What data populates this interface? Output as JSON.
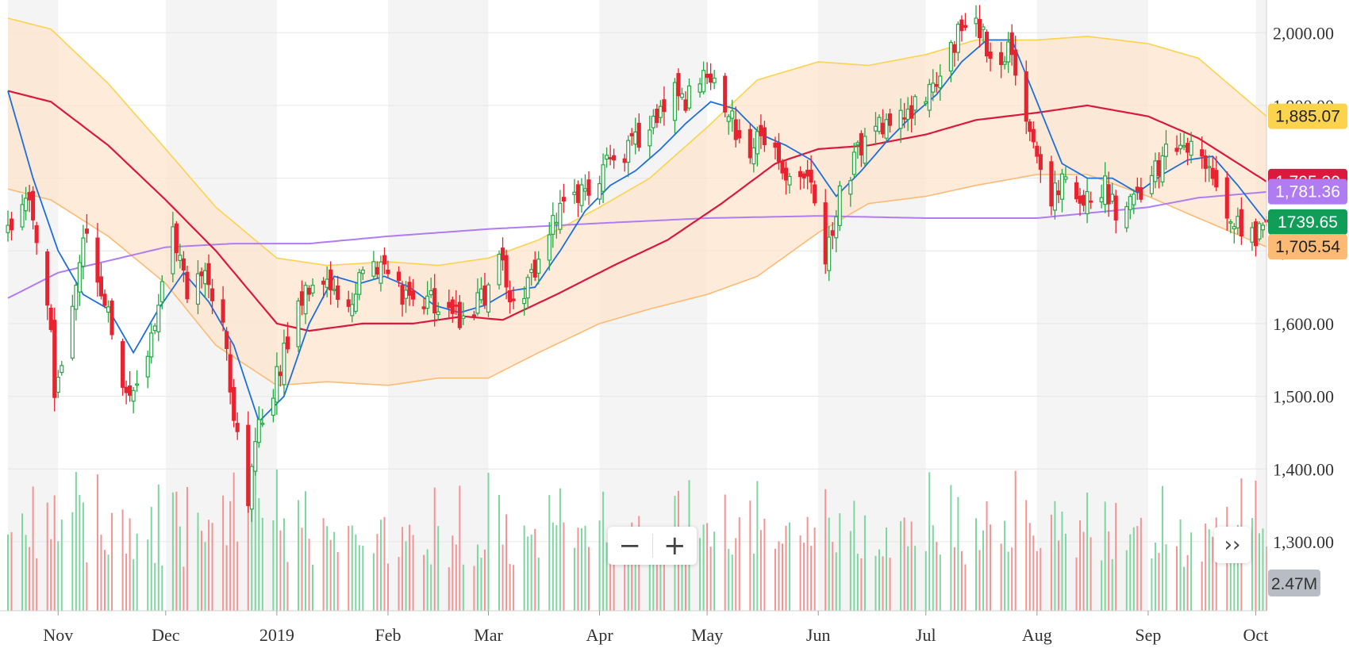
{
  "chart_data": {
    "type": "candlestick",
    "x_range": [
      "2018-10-18",
      "2019-10-04"
    ],
    "months": [
      {
        "label": "Nov",
        "date": "2018-11-01"
      },
      {
        "label": "Dec",
        "date": "2018-12-01"
      },
      {
        "label": "2019",
        "date": "2019-01-01"
      },
      {
        "label": "Feb",
        "date": "2019-02-01"
      },
      {
        "label": "Mar",
        "date": "2019-03-01"
      },
      {
        "label": "Apr",
        "date": "2019-04-01"
      },
      {
        "label": "May",
        "date": "2019-05-01"
      },
      {
        "label": "Jun",
        "date": "2019-06-01"
      },
      {
        "label": "Jul",
        "date": "2019-07-01"
      },
      {
        "label": "Aug",
        "date": "2019-08-01"
      },
      {
        "label": "Sep",
        "date": "2019-09-01"
      },
      {
        "label": "Oct",
        "date": "2019-10-01"
      }
    ],
    "price_axis": {
      "ylim": [
        1205,
        2045
      ],
      "ticks": [
        {
          "value": 2000,
          "label": "2,000.00"
        },
        {
          "value": 1900,
          "label": "1,900.00"
        },
        {
          "value": 1800,
          "label": "1,800.00"
        },
        {
          "value": 1700,
          "label": "1,700.00"
        },
        {
          "value": 1600,
          "label": "1,600.00"
        },
        {
          "value": 1500,
          "label": "1,500.00"
        },
        {
          "value": 1400,
          "label": "1,400.00"
        },
        {
          "value": 1300,
          "label": "1,300.00"
        }
      ]
    },
    "volume_max_millions": 8.5,
    "colors": {
      "up": "#27a644",
      "down": "#e8222f",
      "upVol": "#7ed6a0",
      "downVol": "#f29494",
      "bandFill": "#fde4cc",
      "upperBand": "#fcd34d",
      "lowerBand": "#fdba74",
      "sma50": "#d91a3c",
      "sma200": "#b07cf2",
      "ema10": "#1e6fd9"
    },
    "anchors": [
      [
        "2018-10-18",
        1720
      ],
      [
        "2018-10-24",
        1780
      ],
      [
        "2018-10-26",
        1720
      ],
      [
        "2018-10-29",
        1640
      ],
      [
        "2018-10-31",
        1510
      ],
      [
        "2018-11-05",
        1620
      ],
      [
        "2018-11-08",
        1730
      ],
      [
        "2018-11-13",
        1650
      ],
      [
        "2018-11-20",
        1500
      ],
      [
        "2018-11-26",
        1560
      ],
      [
        "2018-11-29",
        1640
      ],
      [
        "2018-12-03",
        1730
      ],
      [
        "2018-12-07",
        1640
      ],
      [
        "2018-12-12",
        1680
      ],
      [
        "2018-12-17",
        1600
      ],
      [
        "2018-12-20",
        1480
      ],
      [
        "2018-12-24",
        1350
      ],
      [
        "2018-12-26",
        1440
      ],
      [
        "2018-12-31",
        1510
      ],
      [
        "2019-01-04",
        1580
      ],
      [
        "2019-01-08",
        1640
      ],
      [
        "2019-01-15",
        1660
      ],
      [
        "2019-01-22",
        1630
      ],
      [
        "2019-01-25",
        1670
      ],
      [
        "2019-01-31",
        1680
      ],
      [
        "2019-02-04",
        1650
      ],
      [
        "2019-02-08",
        1620
      ],
      [
        "2019-02-14",
        1630
      ],
      [
        "2019-02-21",
        1610
      ],
      [
        "2019-02-28",
        1640
      ],
      [
        "2019-03-04",
        1700
      ],
      [
        "2019-03-08",
        1620
      ],
      [
        "2019-03-14",
        1680
      ],
      [
        "2019-03-22",
        1770
      ],
      [
        "2019-03-29",
        1785
      ],
      [
        "2019-04-05",
        1830
      ],
      [
        "2019-04-12",
        1850
      ],
      [
        "2019-04-22",
        1930
      ],
      [
        "2019-04-25",
        1910
      ],
      [
        "2019-04-29",
        1940
      ],
      [
        "2019-05-03",
        1930
      ],
      [
        "2019-05-08",
        1880
      ],
      [
        "2019-05-13",
        1830
      ],
      [
        "2019-05-16",
        1860
      ],
      [
        "2019-05-22",
        1810
      ],
      [
        "2019-05-29",
        1800
      ],
      [
        "2019-06-03",
        1690
      ],
      [
        "2019-06-06",
        1760
      ],
      [
        "2019-06-12",
        1840
      ],
      [
        "2019-06-20",
        1880
      ],
      [
        "2019-06-28",
        1900
      ],
      [
        "2019-07-05",
        1930
      ],
      [
        "2019-07-10",
        2000
      ],
      [
        "2019-07-16",
        2010
      ],
      [
        "2019-07-19",
        1960
      ],
      [
        "2019-07-25",
        1980
      ],
      [
        "2019-07-30",
        1870
      ],
      [
        "2019-08-02",
        1810
      ],
      [
        "2019-08-05",
        1770
      ],
      [
        "2019-08-09",
        1800
      ],
      [
        "2019-08-15",
        1770
      ],
      [
        "2019-08-20",
        1790
      ],
      [
        "2019-08-23",
        1750
      ],
      [
        "2019-08-30",
        1780
      ],
      [
        "2019-09-06",
        1830
      ],
      [
        "2019-09-13",
        1840
      ],
      [
        "2019-09-19",
        1800
      ],
      [
        "2019-09-24",
        1740
      ],
      [
        "2019-10-01",
        1720
      ],
      [
        "2019-10-04",
        1739.65
      ]
    ],
    "bollinger_upper": [
      [
        "2018-10-18",
        2020
      ],
      [
        "2018-10-30",
        2005
      ],
      [
        "2018-11-15",
        1930
      ],
      [
        "2018-12-01",
        1840
      ],
      [
        "2018-12-15",
        1760
      ],
      [
        "2019-01-01",
        1690
      ],
      [
        "2019-01-15",
        1680
      ],
      [
        "2019-02-01",
        1685
      ],
      [
        "2019-02-15",
        1680
      ],
      [
        "2019-03-01",
        1690
      ],
      [
        "2019-03-15",
        1715
      ],
      [
        "2019-04-01",
        1760
      ],
      [
        "2019-04-15",
        1800
      ],
      [
        "2019-05-01",
        1870
      ],
      [
        "2019-05-15",
        1935
      ],
      [
        "2019-06-01",
        1960
      ],
      [
        "2019-06-15",
        1955
      ],
      [
        "2019-07-01",
        1970
      ],
      [
        "2019-07-15",
        1990
      ],
      [
        "2019-08-01",
        1990
      ],
      [
        "2019-08-15",
        1995
      ],
      [
        "2019-09-01",
        1985
      ],
      [
        "2019-09-15",
        1965
      ],
      [
        "2019-10-04",
        1885.07
      ]
    ],
    "bollinger_lower": [
      [
        "2018-10-18",
        1785
      ],
      [
        "2018-10-30",
        1770
      ],
      [
        "2018-11-15",
        1720
      ],
      [
        "2018-12-01",
        1655
      ],
      [
        "2018-12-15",
        1570
      ],
      [
        "2019-01-01",
        1515
      ],
      [
        "2019-01-15",
        1520
      ],
      [
        "2019-02-01",
        1515
      ],
      [
        "2019-02-15",
        1525
      ],
      [
        "2019-03-01",
        1525
      ],
      [
        "2019-03-15",
        1560
      ],
      [
        "2019-04-01",
        1600
      ],
      [
        "2019-04-15",
        1620
      ],
      [
        "2019-05-01",
        1640
      ],
      [
        "2019-05-15",
        1665
      ],
      [
        "2019-06-01",
        1725
      ],
      [
        "2019-06-15",
        1765
      ],
      [
        "2019-07-01",
        1775
      ],
      [
        "2019-07-15",
        1790
      ],
      [
        "2019-08-01",
        1805
      ],
      [
        "2019-08-15",
        1805
      ],
      [
        "2019-09-01",
        1775
      ],
      [
        "2019-09-15",
        1745
      ],
      [
        "2019-10-04",
        1705.54
      ]
    ],
    "sma50": [
      [
        "2018-10-18",
        1920
      ],
      [
        "2018-10-30",
        1905
      ],
      [
        "2018-11-15",
        1845
      ],
      [
        "2018-12-01",
        1770
      ],
      [
        "2018-12-15",
        1700
      ],
      [
        "2019-01-01",
        1600
      ],
      [
        "2019-01-10",
        1590
      ],
      [
        "2019-01-25",
        1600
      ],
      [
        "2019-02-08",
        1600
      ],
      [
        "2019-02-22",
        1610
      ],
      [
        "2019-03-05",
        1605
      ],
      [
        "2019-03-20",
        1640
      ],
      [
        "2019-04-05",
        1680
      ],
      [
        "2019-04-20",
        1715
      ],
      [
        "2019-05-05",
        1765
      ],
      [
        "2019-05-20",
        1820
      ],
      [
        "2019-06-01",
        1840
      ],
      [
        "2019-06-15",
        1845
      ],
      [
        "2019-07-01",
        1860
      ],
      [
        "2019-07-15",
        1880
      ],
      [
        "2019-08-01",
        1890
      ],
      [
        "2019-08-15",
        1900
      ],
      [
        "2019-09-01",
        1885
      ],
      [
        "2019-09-15",
        1855
      ],
      [
        "2019-10-04",
        1795.3
      ]
    ],
    "sma200": [
      [
        "2018-10-18",
        1635
      ],
      [
        "2018-11-01",
        1670
      ],
      [
        "2018-12-01",
        1705
      ],
      [
        "2018-12-20",
        1710
      ],
      [
        "2019-01-10",
        1710
      ],
      [
        "2019-02-01",
        1720
      ],
      [
        "2019-03-01",
        1730
      ],
      [
        "2019-04-01",
        1738
      ],
      [
        "2019-05-01",
        1745
      ],
      [
        "2019-06-01",
        1748
      ],
      [
        "2019-07-01",
        1745
      ],
      [
        "2019-08-01",
        1745
      ],
      [
        "2019-09-01",
        1760
      ],
      [
        "2019-09-15",
        1773
      ],
      [
        "2019-10-04",
        1781
      ]
    ],
    "ema10": [
      [
        "2018-10-18",
        1920
      ],
      [
        "2018-10-25",
        1800
      ],
      [
        "2018-11-01",
        1700
      ],
      [
        "2018-11-08",
        1640
      ],
      [
        "2018-11-15",
        1620
      ],
      [
        "2018-11-22",
        1560
      ],
      [
        "2018-11-29",
        1620
      ],
      [
        "2018-12-06",
        1670
      ],
      [
        "2018-12-13",
        1630
      ],
      [
        "2018-12-20",
        1570
      ],
      [
        "2018-12-27",
        1465
      ],
      [
        "2019-01-03",
        1500
      ],
      [
        "2019-01-10",
        1600
      ],
      [
        "2019-01-17",
        1665
      ],
      [
        "2019-01-24",
        1655
      ],
      [
        "2019-01-31",
        1665
      ],
      [
        "2019-02-07",
        1650
      ],
      [
        "2019-02-14",
        1625
      ],
      [
        "2019-02-21",
        1615
      ],
      [
        "2019-02-28",
        1625
      ],
      [
        "2019-03-07",
        1645
      ],
      [
        "2019-03-14",
        1650
      ],
      [
        "2019-03-21",
        1700
      ],
      [
        "2019-03-28",
        1755
      ],
      [
        "2019-04-04",
        1790
      ],
      [
        "2019-04-11",
        1810
      ],
      [
        "2019-04-18",
        1840
      ],
      [
        "2019-04-25",
        1875
      ],
      [
        "2019-05-02",
        1905
      ],
      [
        "2019-05-09",
        1895
      ],
      [
        "2019-05-16",
        1860
      ],
      [
        "2019-05-23",
        1845
      ],
      [
        "2019-05-30",
        1825
      ],
      [
        "2019-06-06",
        1775
      ],
      [
        "2019-06-13",
        1810
      ],
      [
        "2019-06-20",
        1850
      ],
      [
        "2019-06-27",
        1885
      ],
      [
        "2019-07-04",
        1915
      ],
      [
        "2019-07-11",
        1960
      ],
      [
        "2019-07-18",
        1990
      ],
      [
        "2019-07-25",
        1990
      ],
      [
        "2019-08-01",
        1905
      ],
      [
        "2019-08-08",
        1820
      ],
      [
        "2019-08-15",
        1800
      ],
      [
        "2019-08-22",
        1800
      ],
      [
        "2019-08-29",
        1780
      ],
      [
        "2019-09-05",
        1805
      ],
      [
        "2019-09-12",
        1825
      ],
      [
        "2019-09-19",
        1830
      ],
      [
        "2019-09-26",
        1790
      ],
      [
        "2019-10-04",
        1739.65
      ]
    ]
  },
  "badges": [
    {
      "label": "1,885.07",
      "value": 1885.07,
      "bg": "#fcd34d",
      "fg": "#222222"
    },
    {
      "label": "1,795.30",
      "value": 1795.3,
      "bg": "#d91a3c",
      "fg": "#ffffff"
    },
    {
      "label": "1,781.36",
      "value": 1781.36,
      "bg": "#b07cf2",
      "fg": "#ffffff"
    },
    {
      "label": "1739.65",
      "value": 1739.65,
      "bg": "#0f9d58",
      "fg": "#ffffff"
    },
    {
      "label": "1,705.54",
      "value": 1705.54,
      "bg": "#fdba74",
      "fg": "#222222"
    }
  ],
  "volume_badge": {
    "label": "2.47M"
  },
  "controls": {
    "zoom_out": "−",
    "zoom_in": "+",
    "scroll_right": "››"
  }
}
